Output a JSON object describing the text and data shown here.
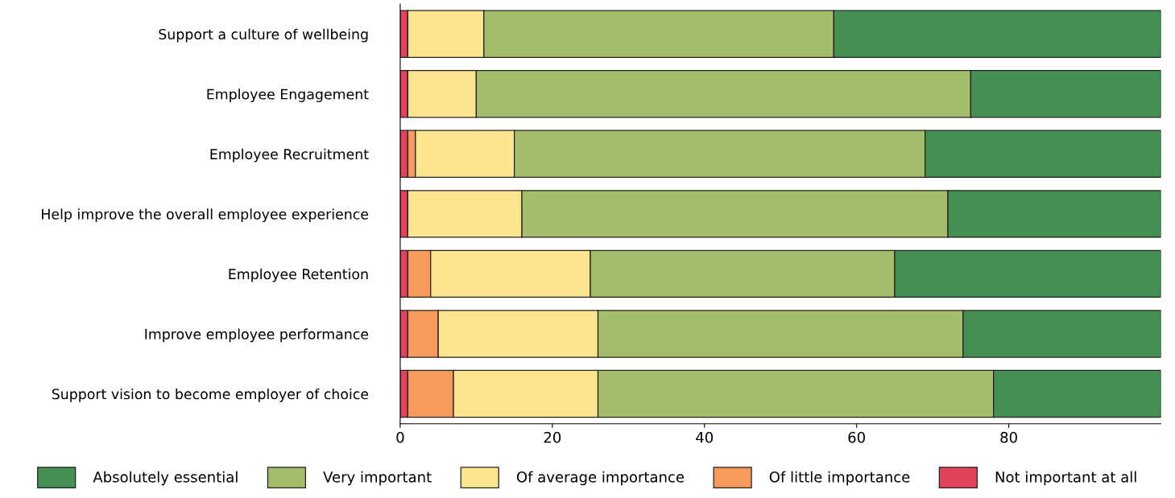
{
  "chart_data": {
    "type": "bar",
    "orientation": "horizontal",
    "stacked": true,
    "categories": [
      "Support a culture of wellbeing",
      "Employee Engagement",
      "Employee Recruitment",
      "Help improve the overall employee experience",
      "Employee Retention",
      "Improve employee performance",
      "Support vision to become employer of choice"
    ],
    "series": [
      {
        "name": "Not important at all",
        "color": "#e0435a",
        "values": [
          1,
          1,
          1,
          1,
          1,
          1,
          1
        ]
      },
      {
        "name": "Of little importance",
        "color": "#f79a5e",
        "values": [
          0,
          0,
          1,
          0,
          3,
          4,
          6
        ]
      },
      {
        "name": "Of average importance",
        "color": "#fde58f",
        "values": [
          10,
          9,
          13,
          15,
          21,
          21,
          19
        ]
      },
      {
        "name": "Very important",
        "color": "#a3bd6a",
        "values": [
          46,
          65,
          54,
          56,
          40,
          48,
          52
        ]
      },
      {
        "name": "Absolutely essential",
        "color": "#468f52",
        "values": [
          43,
          25,
          31,
          28,
          35,
          26,
          22
        ]
      }
    ],
    "xlim": [
      0,
      100
    ],
    "xticks": [
      0,
      20,
      40,
      60,
      80
    ],
    "grid": false,
    "legend": "bottom"
  }
}
